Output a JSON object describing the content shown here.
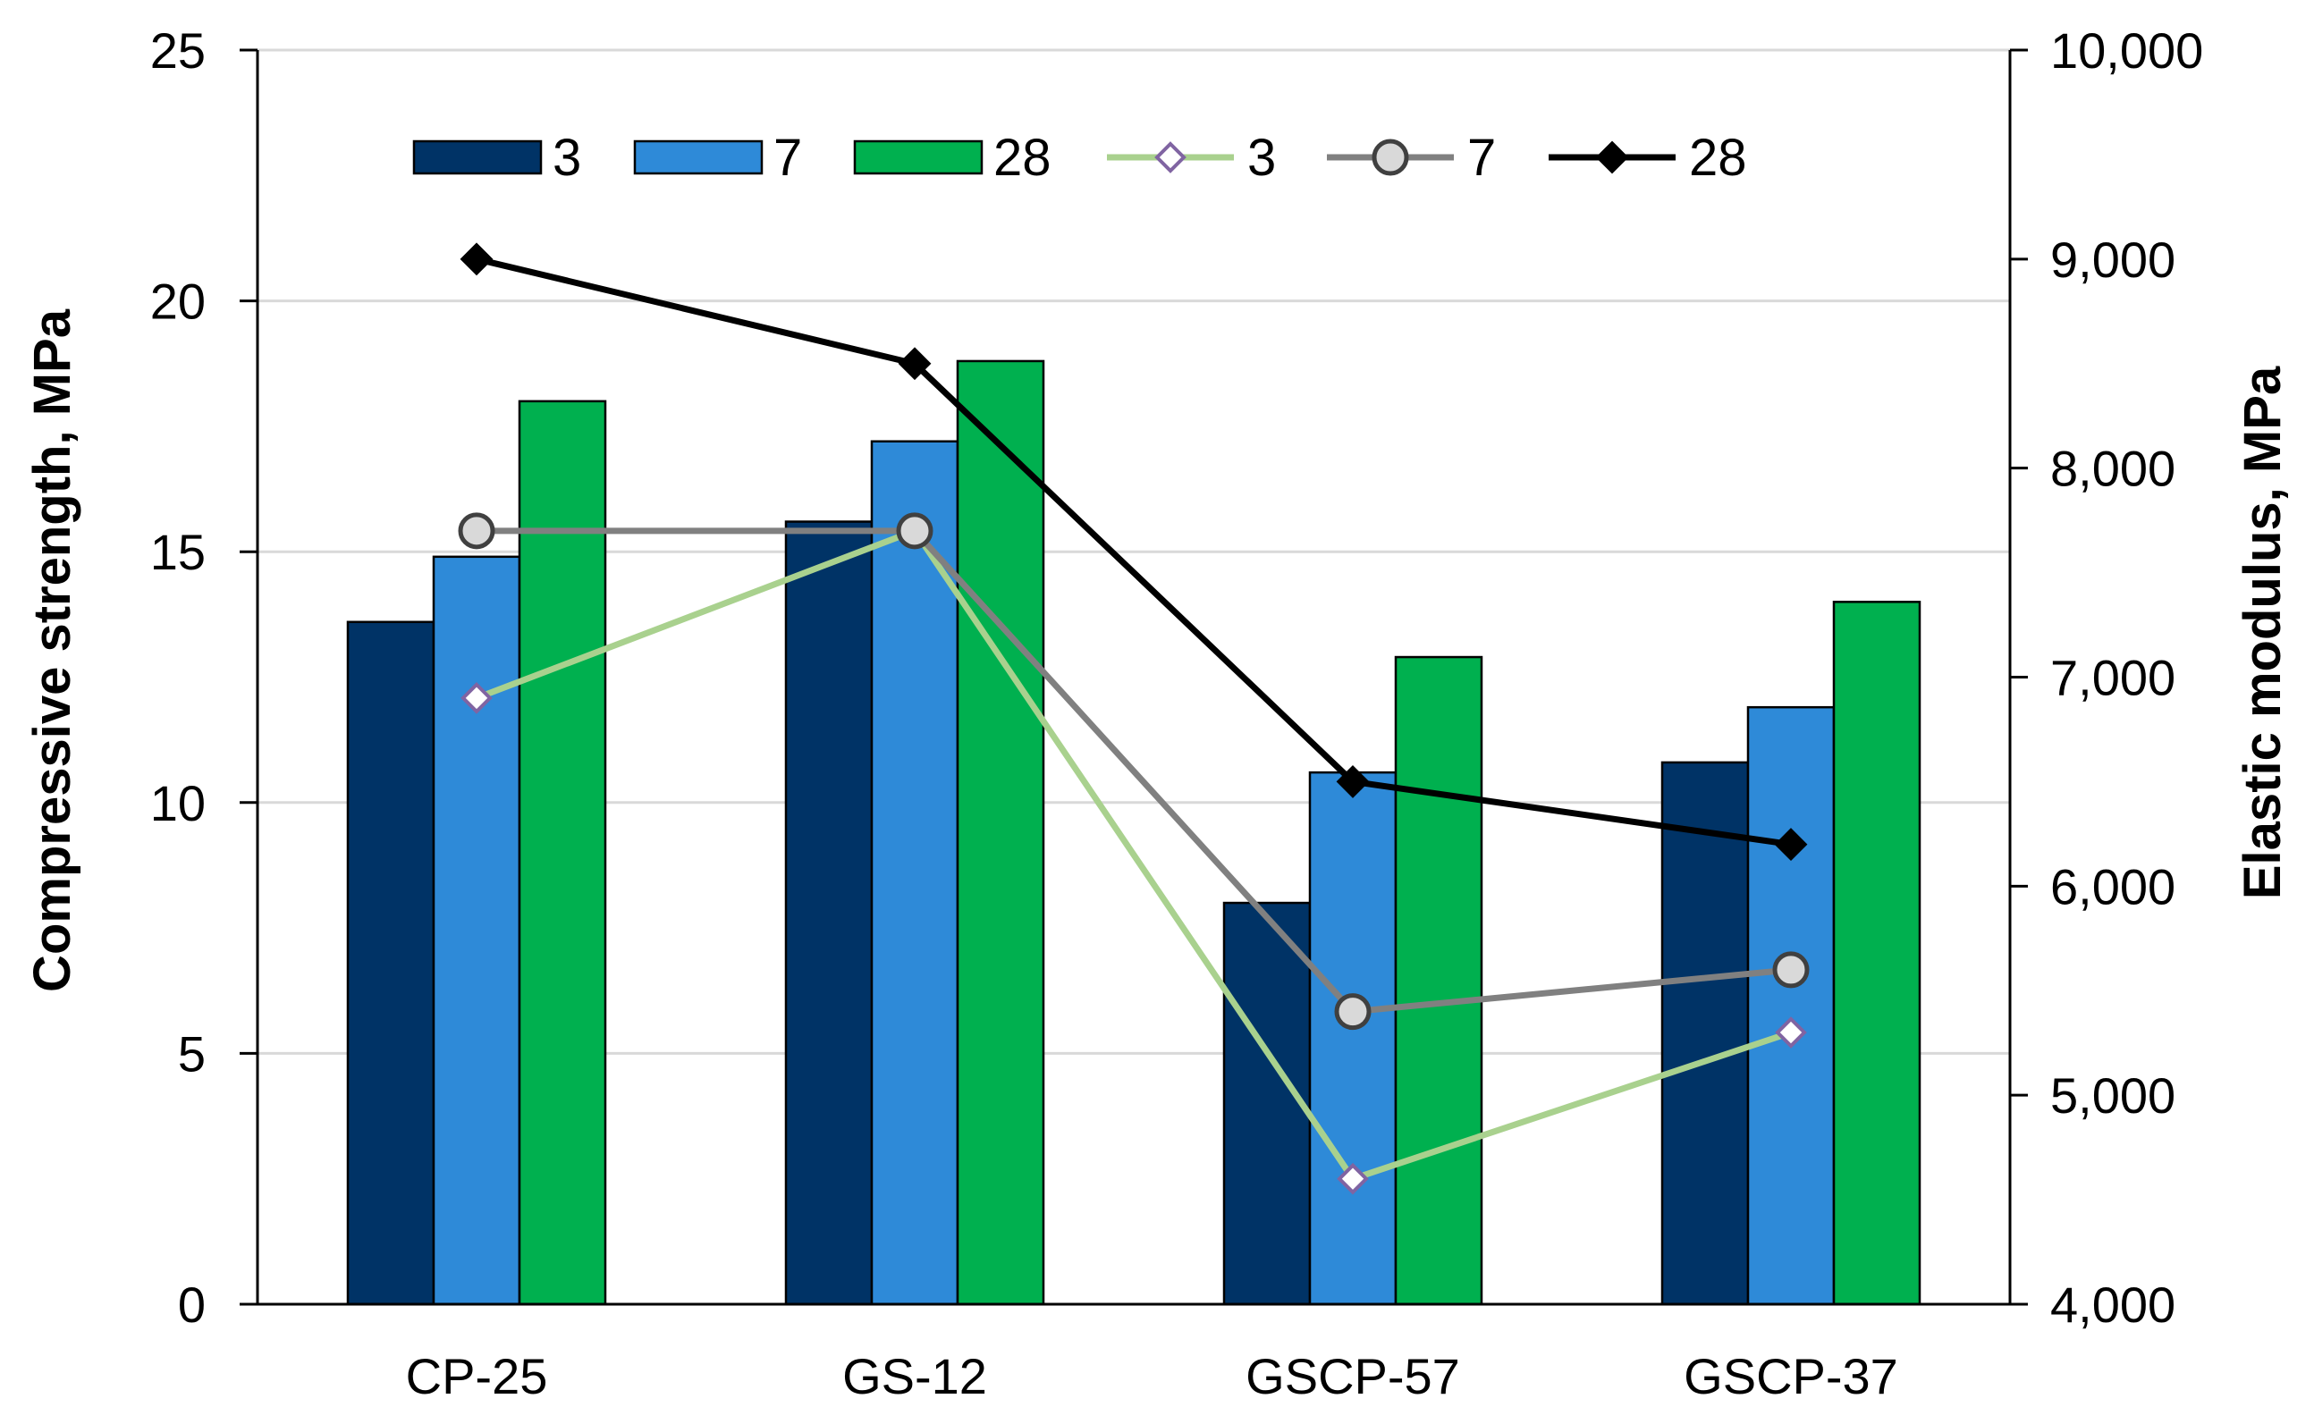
{
  "chart_data": {
    "type": "bar+line",
    "categories": [
      "CP-25",
      "GS-12",
      "GSCP-57",
      "GSCP-37"
    ],
    "bar_series": [
      {
        "name": "3",
        "values": [
          13.6,
          15.6,
          8.0,
          10.8
        ],
        "color": "#003366"
      },
      {
        "name": "7",
        "values": [
          14.9,
          17.2,
          10.6,
          11.9
        ],
        "color": "#2e8ad8"
      },
      {
        "name": "28",
        "values": [
          18.0,
          18.8,
          12.9,
          14.0
        ],
        "color": "#00b04f"
      }
    ],
    "line_series": [
      {
        "name": "3",
        "values": [
          6900,
          7700,
          4600,
          5300
        ],
        "color": "#a9d18e",
        "marker": "diamond-open",
        "marker_stroke": "#8064a2"
      },
      {
        "name": "7",
        "values": [
          7700,
          7700,
          5400,
          5600
        ],
        "color": "#808080",
        "marker": "circle",
        "marker_fill": "#d9d9d9"
      },
      {
        "name": "28",
        "values": [
          9000,
          8500,
          6500,
          6200
        ],
        "color": "#000000",
        "marker": "diamond"
      }
    ],
    "y_left": {
      "label": "Compressive strength, MPa",
      "min": 0,
      "max": 25,
      "ticks": [
        "0",
        "5",
        "10",
        "15",
        "20",
        "25"
      ]
    },
    "y_right": {
      "label": "Elastic modulus, MPa",
      "min": 4000,
      "max": 10000,
      "ticks": [
        "4,000",
        "5,000",
        "6,000",
        "7,000",
        "8,000",
        "9,000",
        "10,000"
      ]
    },
    "grid": true,
    "legend_position": "top"
  }
}
